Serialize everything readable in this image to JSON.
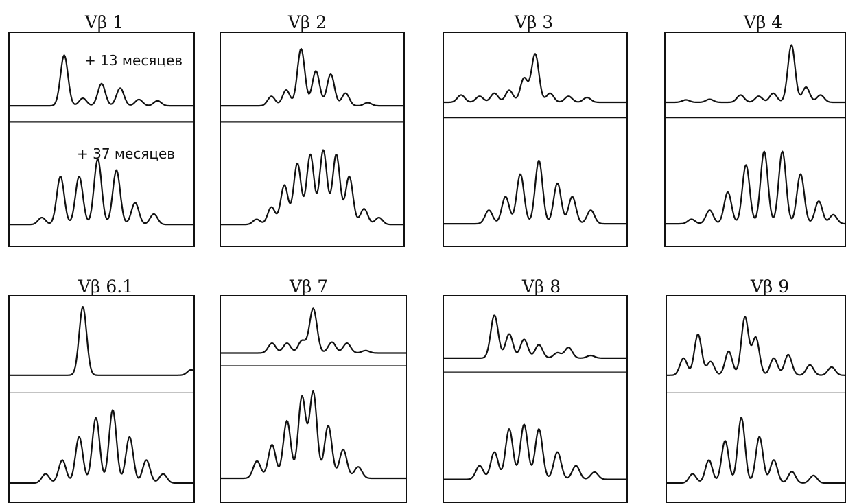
{
  "chart_data": [
    {
      "type": "line",
      "title": "Vβ 1",
      "series": [
        {
          "name": "+ 13 месяцев",
          "peaks": [
            [
              0.3,
              0.8
            ],
            [
              0.4,
              0.12
            ],
            [
              0.5,
              0.35
            ],
            [
              0.6,
              0.28
            ],
            [
              0.7,
              0.1
            ],
            [
              0.8,
              0.08
            ]
          ]
        },
        {
          "name": "+ 37 месяцев",
          "peaks": [
            [
              0.18,
              0.08
            ],
            [
              0.28,
              0.55
            ],
            [
              0.38,
              0.55
            ],
            [
              0.48,
              0.75
            ],
            [
              0.58,
              0.62
            ],
            [
              0.68,
              0.25
            ],
            [
              0.78,
              0.12
            ]
          ]
        }
      ]
    },
    {
      "type": "line",
      "title": "Vβ 2",
      "series": [
        {
          "peaks": [
            [
              0.28,
              0.15
            ],
            [
              0.36,
              0.25
            ],
            [
              0.44,
              0.9
            ],
            [
              0.52,
              0.55
            ],
            [
              0.6,
              0.5
            ],
            [
              0.68,
              0.2
            ],
            [
              0.8,
              0.05
            ]
          ]
        },
        {
          "peaks": [
            [
              0.2,
              0.06
            ],
            [
              0.28,
              0.2
            ],
            [
              0.35,
              0.45
            ],
            [
              0.42,
              0.7
            ],
            [
              0.49,
              0.8
            ],
            [
              0.56,
              0.85
            ],
            [
              0.63,
              0.8
            ],
            [
              0.7,
              0.55
            ],
            [
              0.78,
              0.18
            ],
            [
              0.86,
              0.08
            ]
          ]
        }
      ]
    },
    {
      "type": "line",
      "title": "Vβ 3",
      "series": [
        {
          "peaks": [
            [
              0.1,
              0.12
            ],
            [
              0.2,
              0.1
            ],
            [
              0.28,
              0.15
            ],
            [
              0.36,
              0.2
            ],
            [
              0.44,
              0.4
            ],
            [
              0.5,
              0.8
            ],
            [
              0.58,
              0.15
            ],
            [
              0.68,
              0.1
            ],
            [
              0.78,
              0.08
            ]
          ]
        },
        {
          "peaks": [
            [
              0.25,
              0.15
            ],
            [
              0.34,
              0.3
            ],
            [
              0.42,
              0.55
            ],
            [
              0.52,
              0.7
            ],
            [
              0.62,
              0.45
            ],
            [
              0.7,
              0.3
            ],
            [
              0.8,
              0.15
            ]
          ]
        }
      ]
    },
    {
      "type": "line",
      "title": "Vβ 4",
      "series": [
        {
          "peaks": [
            [
              0.12,
              0.04
            ],
            [
              0.25,
              0.05
            ],
            [
              0.42,
              0.12
            ],
            [
              0.52,
              0.1
            ],
            [
              0.6,
              0.15
            ],
            [
              0.7,
              0.95
            ],
            [
              0.78,
              0.25
            ],
            [
              0.86,
              0.12
            ]
          ]
        },
        {
          "peaks": [
            [
              0.15,
              0.05
            ],
            [
              0.25,
              0.15
            ],
            [
              0.35,
              0.35
            ],
            [
              0.45,
              0.65
            ],
            [
              0.55,
              0.8
            ],
            [
              0.65,
              0.8
            ],
            [
              0.75,
              0.55
            ],
            [
              0.85,
              0.25
            ],
            [
              0.93,
              0.1
            ]
          ]
        }
      ]
    },
    {
      "type": "line",
      "title": "Vβ 6.1",
      "series": [
        {
          "peaks": [
            [
              0.4,
              1.0
            ],
            [
              0.98,
              0.08
            ]
          ]
        },
        {
          "peaks": [
            [
              0.2,
              0.12
            ],
            [
              0.29,
              0.3
            ],
            [
              0.38,
              0.6
            ],
            [
              0.47,
              0.85
            ],
            [
              0.56,
              0.95
            ],
            [
              0.65,
              0.6
            ],
            [
              0.74,
              0.3
            ],
            [
              0.83,
              0.12
            ]
          ]
        }
      ]
    },
    {
      "type": "line",
      "title": "Vβ 7",
      "series": [
        {
          "peaks": [
            [
              0.28,
              0.2
            ],
            [
              0.36,
              0.2
            ],
            [
              0.44,
              0.25
            ],
            [
              0.5,
              0.9
            ],
            [
              0.6,
              0.22
            ],
            [
              0.68,
              0.2
            ],
            [
              0.78,
              0.05
            ]
          ]
        },
        {
          "peaks": [
            [
              0.2,
              0.18
            ],
            [
              0.28,
              0.35
            ],
            [
              0.36,
              0.6
            ],
            [
              0.44,
              0.85
            ],
            [
              0.5,
              0.9
            ],
            [
              0.58,
              0.55
            ],
            [
              0.66,
              0.3
            ],
            [
              0.74,
              0.12
            ]
          ]
        }
      ]
    },
    {
      "type": "line",
      "title": "Vβ 8",
      "series": [
        {
          "peaks": [
            [
              0.28,
              0.8
            ],
            [
              0.36,
              0.45
            ],
            [
              0.44,
              0.35
            ],
            [
              0.52,
              0.25
            ],
            [
              0.62,
              0.1
            ],
            [
              0.68,
              0.2
            ],
            [
              0.8,
              0.05
            ]
          ]
        },
        {
          "peaks": [
            [
              0.2,
              0.15
            ],
            [
              0.28,
              0.3
            ],
            [
              0.36,
              0.55
            ],
            [
              0.44,
              0.6
            ],
            [
              0.52,
              0.55
            ],
            [
              0.62,
              0.3
            ],
            [
              0.72,
              0.15
            ],
            [
              0.82,
              0.08
            ]
          ]
        }
      ]
    },
    {
      "type": "line",
      "title": "Vβ 9",
      "series": [
        {
          "peaks": [
            [
              0.1,
              0.25
            ],
            [
              0.18,
              0.6
            ],
            [
              0.25,
              0.2
            ],
            [
              0.35,
              0.35
            ],
            [
              0.44,
              0.85
            ],
            [
              0.5,
              0.55
            ],
            [
              0.6,
              0.25
            ],
            [
              0.68,
              0.3
            ],
            [
              0.8,
              0.15
            ],
            [
              0.92,
              0.12
            ]
          ]
        },
        {
          "peaks": [
            [
              0.15,
              0.12
            ],
            [
              0.24,
              0.3
            ],
            [
              0.33,
              0.55
            ],
            [
              0.42,
              0.85
            ],
            [
              0.52,
              0.6
            ],
            [
              0.6,
              0.3
            ],
            [
              0.7,
              0.15
            ],
            [
              0.82,
              0.1
            ]
          ]
        }
      ]
    }
  ]
}
